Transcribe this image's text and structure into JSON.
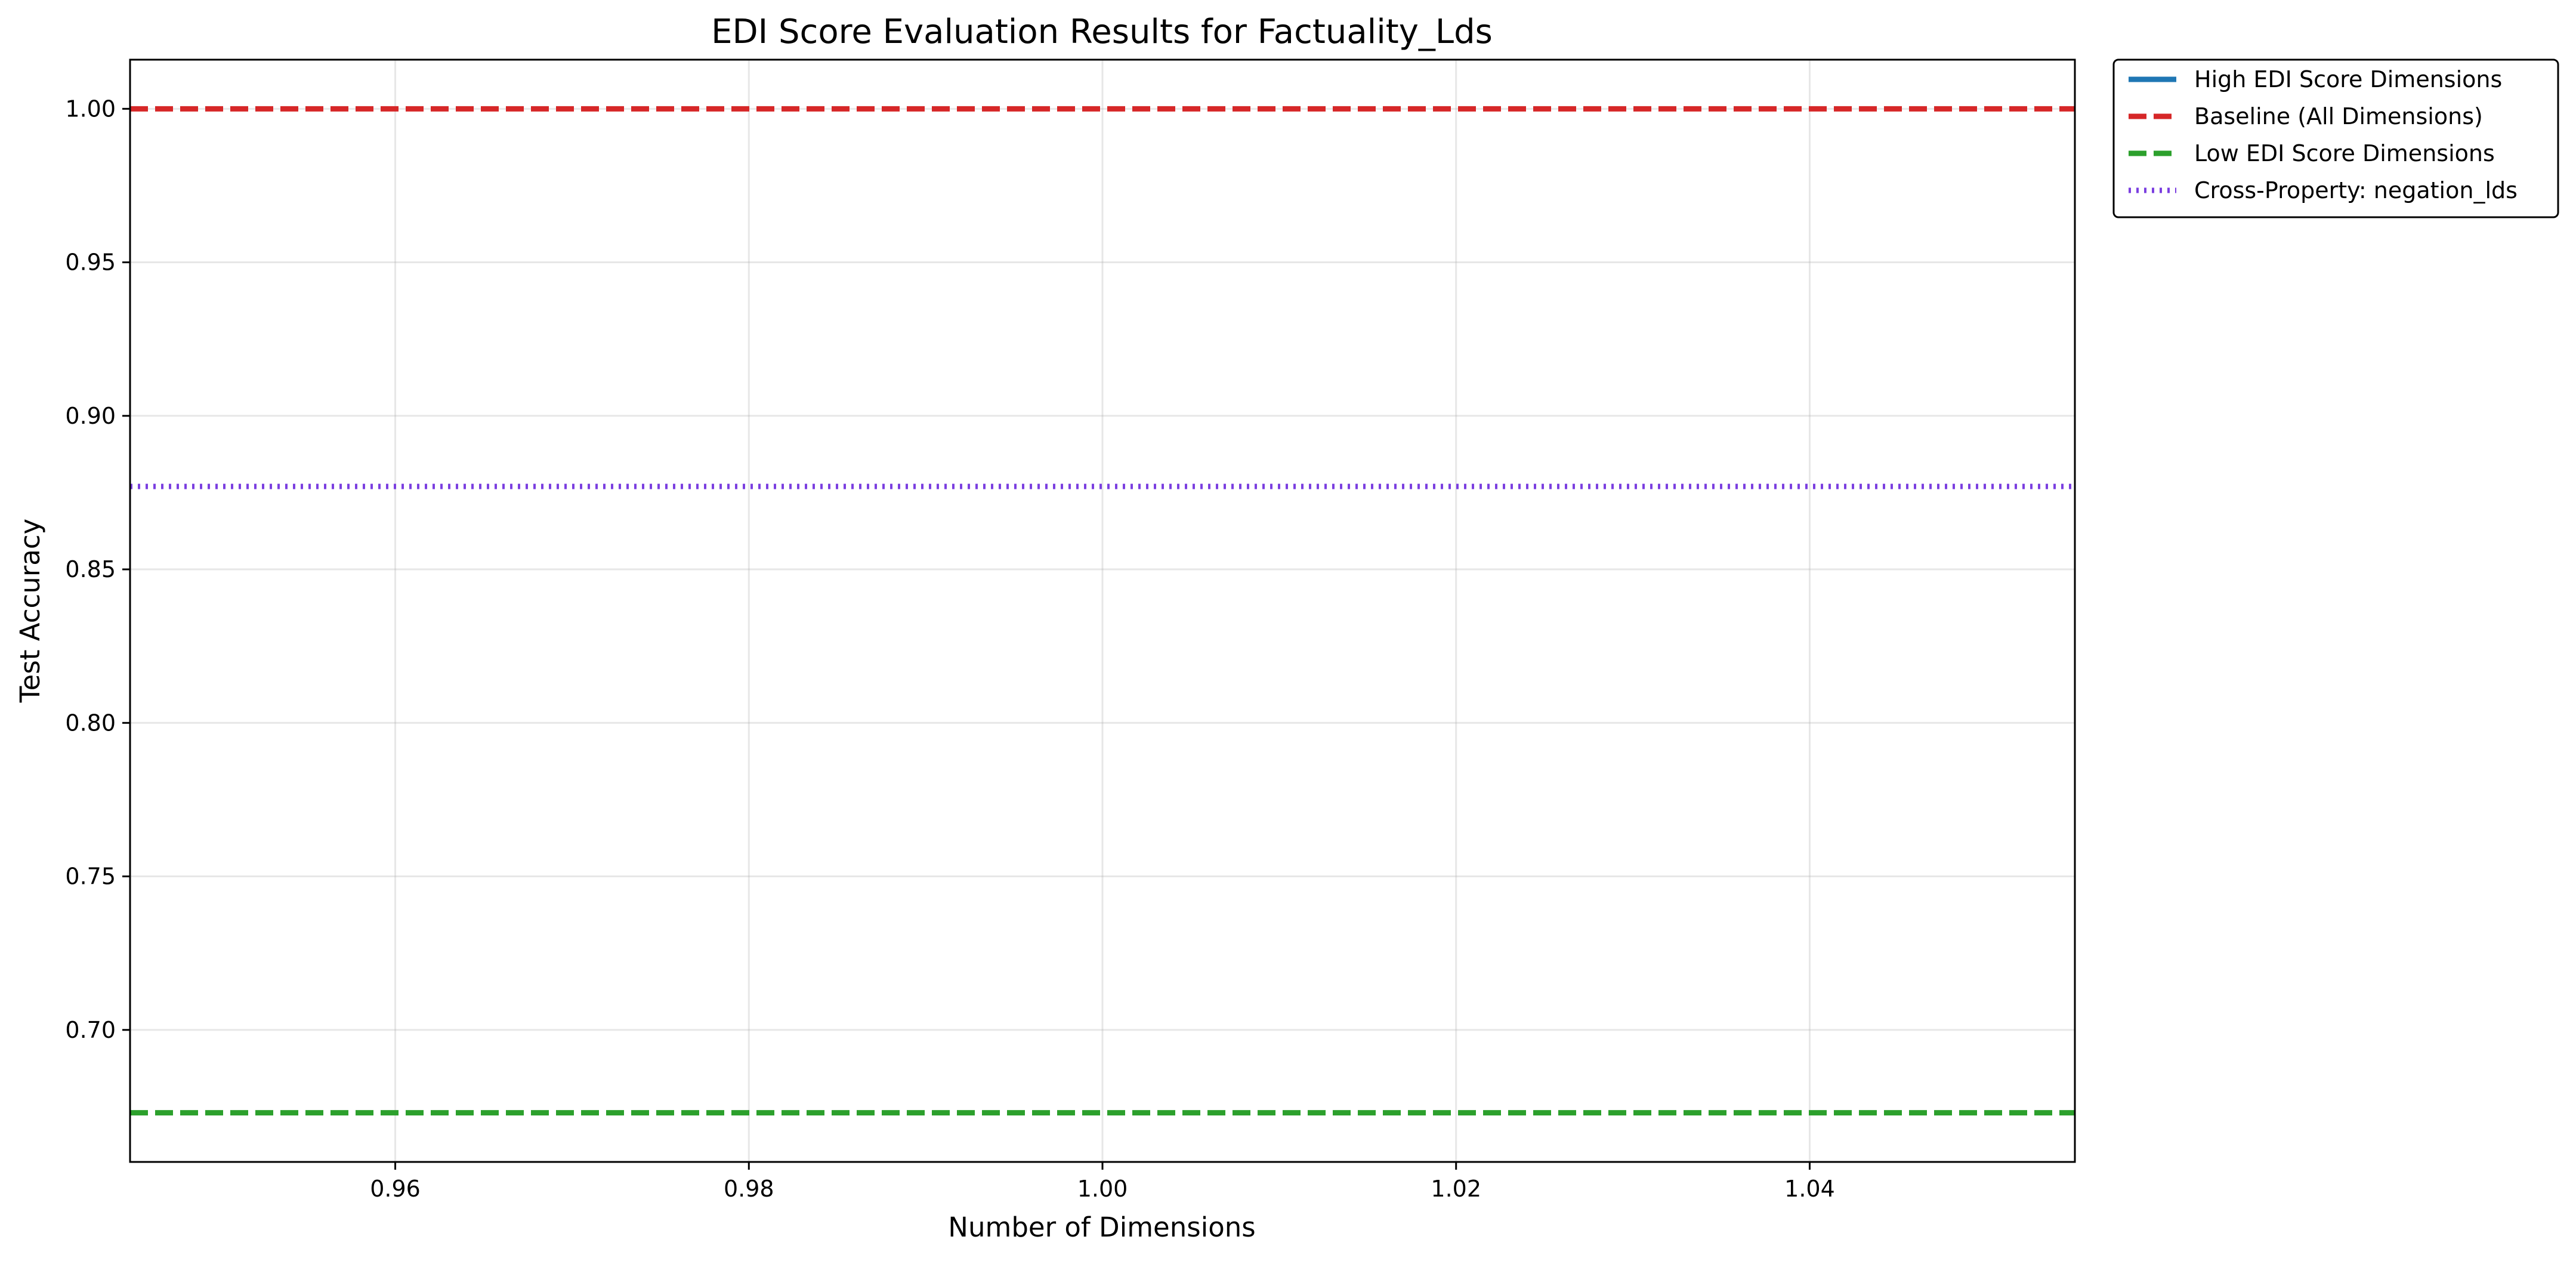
{
  "chart_data": {
    "type": "line",
    "title": "EDI Score Evaluation Results for Factuality_Lds",
    "xlabel": "Number of Dimensions",
    "ylabel": "Test Accuracy",
    "xlim": [
      0.945,
      1.055
    ],
    "ylim": [
      0.657,
      1.016
    ],
    "xticks": [
      0.96,
      0.98,
      1.0,
      1.02,
      1.04
    ],
    "xtick_labels": [
      "0.96",
      "0.98",
      "1.00",
      "1.02",
      "1.04"
    ],
    "yticks": [
      0.7,
      0.75,
      0.8,
      0.85,
      0.9,
      0.95,
      1.0
    ],
    "ytick_labels": [
      "0.70",
      "0.75",
      "0.80",
      "0.85",
      "0.90",
      "0.95",
      "1.00"
    ],
    "grid": true,
    "legend_position": "outside-top-right",
    "series": [
      {
        "name": "High EDI Score Dimensions",
        "color": "#1f77b4",
        "style": "solid",
        "kind": "line",
        "x": [
          1
        ],
        "y": [
          1.0
        ]
      },
      {
        "name": "Baseline (All Dimensions)",
        "color": "#d62728",
        "style": "dashed",
        "kind": "hline",
        "y": 1.0
      },
      {
        "name": "Low EDI Score Dimensions",
        "color": "#2ca02c",
        "style": "dashed",
        "kind": "hline",
        "y": 0.673
      },
      {
        "name": "Cross-Property: negation_lds",
        "color": "#7b3fe0",
        "style": "dotted",
        "kind": "hline",
        "y": 0.877
      }
    ]
  }
}
